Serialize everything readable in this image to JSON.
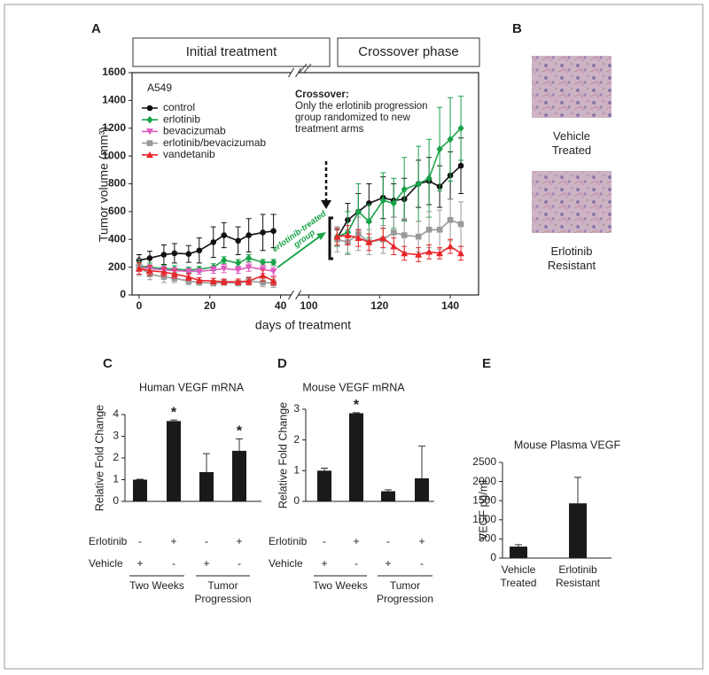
{
  "panel_labels": [
    "A",
    "B",
    "C",
    "D",
    "E"
  ],
  "panel_b": {
    "images": [
      "Vehicle Treated",
      "Erlotinib Resistant"
    ]
  },
  "chart_data": [
    {
      "type": "line",
      "headers": [
        "Initial treatment",
        "Crossover phase"
      ],
      "cell_line": "A549",
      "xlabel": "days of treatment",
      "ylabel": "Tumor volume (mm³)",
      "annotation_title": "Crossover:",
      "annotation": "Only the erlotinib progression group randomized to new treatment arms",
      "group_label": "erlotinib-treated group",
      "x": [
        0,
        3,
        7,
        10,
        14,
        17,
        21,
        24,
        28,
        31,
        35,
        38,
        108,
        111,
        114,
        117,
        121,
        124,
        127,
        131,
        134,
        137,
        140,
        143
      ],
      "xlim": [
        -2,
        148
      ],
      "xbreak": [
        44,
        96
      ],
      "xticks": [
        0,
        20,
        40,
        100,
        120,
        140
      ],
      "ylim": [
        0,
        1600
      ],
      "yticks": [
        0,
        200,
        400,
        600,
        800,
        1000,
        1200,
        1400,
        1600
      ],
      "series": [
        {
          "name": "control",
          "color": "#111111",
          "marker": "circle",
          "values": [
            250,
            265,
            290,
            300,
            295,
            320,
            380,
            430,
            390,
            430,
            450,
            460,
            410,
            540,
            600,
            660,
            700,
            680,
            690,
            800,
            820,
            780,
            860,
            930
          ],
          "errors": [
            40,
            50,
            70,
            70,
            60,
            90,
            110,
            90,
            100,
            120,
            130,
            120,
            60,
            120,
            130,
            140,
            150,
            120,
            150,
            170,
            170,
            150,
            170,
            200
          ]
        },
        {
          "name": "erlotinib",
          "color": "#1aa34a",
          "marker": "diamond",
          "values": [
            210,
            200,
            190,
            185,
            180,
            185,
            200,
            250,
            230,
            265,
            235,
            235,
            420,
            450,
            600,
            530,
            680,
            660,
            760,
            800,
            840,
            1050,
            1120,
            1200
          ],
          "errors": [
            30,
            30,
            25,
            25,
            20,
            20,
            25,
            25,
            25,
            25,
            20,
            20,
            70,
            150,
            200,
            120,
            200,
            180,
            230,
            270,
            280,
            300,
            300,
            230
          ]
        },
        {
          "name": "bevacizumab",
          "color": "#e05cc0",
          "marker": "triangle-down",
          "values": [
            200,
            190,
            180,
            175,
            170,
            170,
            180,
            190,
            180,
            200,
            185,
            170,
            null,
            null,
            null,
            null,
            null,
            null,
            null,
            null,
            null,
            null,
            null,
            null
          ],
          "errors": [
            30,
            25,
            25,
            20,
            20,
            20,
            25,
            30,
            25,
            30,
            30,
            30,
            null,
            null,
            null,
            null,
            null,
            null,
            null,
            null,
            null,
            null,
            null,
            null
          ]
        },
        {
          "name": "erlotinib/bevacizumab",
          "color": "#999999",
          "marker": "square",
          "values": [
            200,
            150,
            130,
            120,
            100,
            90,
            85,
            90,
            85,
            100,
            90,
            85,
            400,
            380,
            440,
            380,
            400,
            450,
            430,
            420,
            470,
            470,
            540,
            510
          ],
          "errors": [
            60,
            40,
            40,
            30,
            25,
            20,
            20,
            20,
            20,
            30,
            30,
            30,
            90,
            90,
            120,
            90,
            100,
            110,
            120,
            110,
            130,
            140,
            150,
            160
          ]
        },
        {
          "name": "vandetanib",
          "color": "#e8262a",
          "marker": "triangle-up",
          "values": [
            190,
            175,
            165,
            150,
            130,
            105,
            100,
            95,
            95,
            100,
            140,
            100,
            420,
            430,
            410,
            380,
            410,
            350,
            300,
            290,
            310,
            300,
            350,
            300
          ],
          "errors": [
            40,
            35,
            30,
            30,
            25,
            20,
            20,
            20,
            20,
            25,
            40,
            30,
            60,
            70,
            60,
            60,
            70,
            60,
            50,
            50,
            50,
            40,
            50,
            50
          ]
        }
      ]
    },
    {
      "type": "bar",
      "title": "Human VEGF mRNA",
      "ylabel": "Relative Fold Change",
      "values": [
        1.0,
        3.7,
        1.35,
        2.33
      ],
      "errors": [
        0.02,
        0.05,
        0.85,
        0.55
      ],
      "significance": [
        null,
        "*",
        null,
        "*"
      ],
      "color": "#1a1a1a",
      "ylim": [
        0,
        4
      ],
      "yticks": [
        0,
        1,
        2,
        3,
        4
      ],
      "row_labels": [
        "Erlotinib",
        "Vehicle"
      ],
      "rows": [
        [
          "-",
          "+",
          "-",
          "+"
        ],
        [
          "+",
          "-",
          "+",
          "-"
        ]
      ],
      "groups": [
        "Two Weeks",
        "Tumor Progression"
      ]
    },
    {
      "type": "bar",
      "title": "Mouse VEGF mRNA",
      "ylabel": "Relative Fold Change",
      "values": [
        1.0,
        2.87,
        0.33,
        0.75
      ],
      "errors": [
        0.08,
        0.02,
        0.05,
        1.05
      ],
      "significance": [
        null,
        "*",
        null,
        null
      ],
      "color": "#1a1a1a",
      "ylim": [
        0,
        3
      ],
      "yticks": [
        0,
        1,
        2,
        3
      ],
      "row_labels": [
        "Erlotinib",
        "Vehicle"
      ],
      "rows": [
        [
          "-",
          "+",
          "-",
          "+"
        ],
        [
          "+",
          "-",
          "+",
          "-"
        ]
      ],
      "groups": [
        "Two Weeks",
        "Tumor Progression"
      ]
    },
    {
      "type": "bar",
      "title": "Mouse Plasma VEGF",
      "ylabel": "VEGF pg/ml",
      "categories": [
        "Vehicle Treated",
        "Erlotinib Resistant"
      ],
      "values": [
        300,
        1430
      ],
      "errors": [
        50,
        680
      ],
      "color": "#1a1a1a",
      "ylim": [
        0,
        2500
      ],
      "yticks": [
        0,
        500,
        1000,
        1500,
        2000,
        2500
      ]
    }
  ]
}
